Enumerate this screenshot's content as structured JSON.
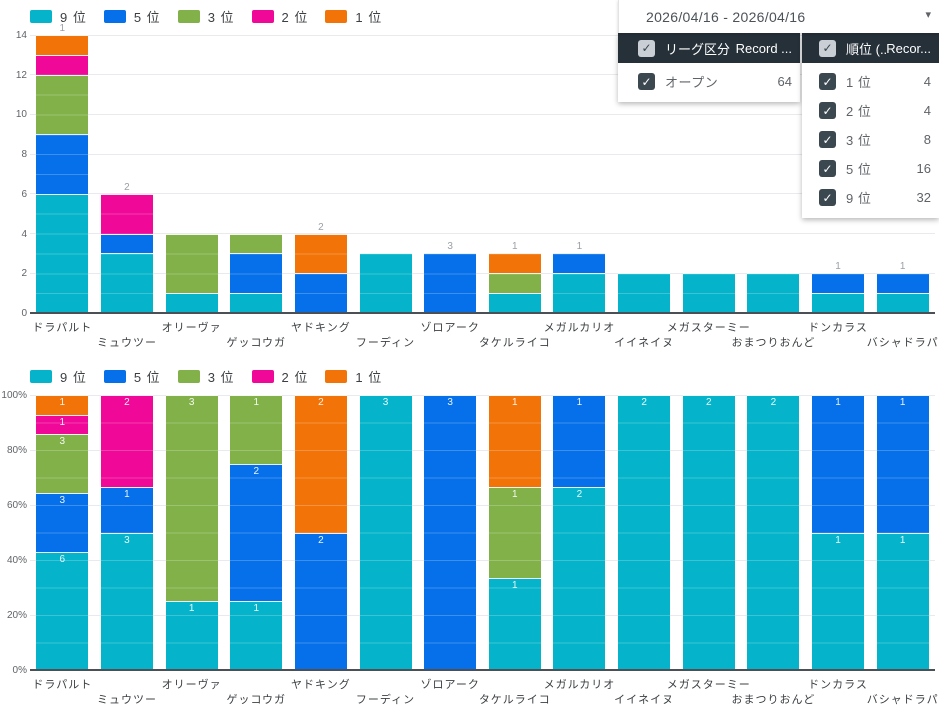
{
  "panel": {
    "date_range": "2026/04/16 - 2026/04/16",
    "caret": "▾",
    "league_filter": {
      "title": "リーグ区分",
      "record_column": "Record ...",
      "rows": [
        {
          "label": "オープン",
          "count": "64",
          "checked": true
        }
      ]
    },
    "rank_filter": {
      "title": "順位 (...",
      "record_column": "Recor...",
      "rows": [
        {
          "label": "1 位",
          "count": "4",
          "checked": true
        },
        {
          "label": "2 位",
          "count": "4",
          "checked": true
        },
        {
          "label": "3 位",
          "count": "8",
          "checked": true
        },
        {
          "label": "5 位",
          "count": "16",
          "checked": true
        },
        {
          "label": "9 位",
          "count": "32",
          "checked": true
        }
      ]
    }
  },
  "chart_data": [
    {
      "type": "bar",
      "stacked": true,
      "mode": "count",
      "legend_position": "top",
      "grid": true,
      "ylim": [
        0,
        14
      ],
      "yticks": [
        0,
        2,
        4,
        6,
        8,
        10,
        12,
        14
      ],
      "categories": [
        "ドラパルト",
        "ミュウツー",
        "オリーヴァ",
        "ゲッコウガ",
        "ヤドキング",
        "フーディン",
        "ゾロアーク",
        "タケルライコ",
        "メガルカリオ",
        "イイネイヌ",
        "メガスターミー",
        "おまつりおんど",
        "ドンカラス",
        "バシャドラパ"
      ],
      "series": [
        {
          "name": "9 位",
          "color": "#05b4cb",
          "values": [
            6,
            3,
            1,
            1,
            0,
            3,
            0,
            1,
            2,
            2,
            2,
            2,
            1,
            1
          ]
        },
        {
          "name": "5 位",
          "color": "#0670ea",
          "values": [
            3,
            1,
            0,
            2,
            2,
            0,
            3,
            0,
            1,
            0,
            0,
            0,
            1,
            1
          ]
        },
        {
          "name": "3 位",
          "color": "#82b14a",
          "values": [
            3,
            0,
            3,
            1,
            0,
            0,
            0,
            1,
            0,
            0,
            0,
            0,
            0,
            0
          ]
        },
        {
          "name": "2 位",
          "color": "#f00898",
          "values": [
            1,
            2,
            0,
            0,
            0,
            0,
            0,
            0,
            0,
            0,
            0,
            0,
            0,
            0
          ]
        },
        {
          "name": "1 位",
          "color": "#f27409",
          "values": [
            1,
            0,
            0,
            0,
            2,
            0,
            0,
            1,
            0,
            0,
            0,
            0,
            0,
            0
          ]
        }
      ],
      "data_labels": "segment-values",
      "hide_top_label_for_series": [
        "9 位",
        "3 位"
      ],
      "top_label_color": "#9aa0a6"
    },
    {
      "type": "bar",
      "stacked": true,
      "mode": "percent",
      "legend_position": "top",
      "grid": true,
      "ylim": [
        0,
        100
      ],
      "yticks": [
        "0%",
        "20%",
        "40%",
        "60%",
        "80%",
        "100%"
      ],
      "categories": [
        "ドラパルト",
        "ミュウツー",
        "オリーヴァ",
        "ゲッコウガ",
        "ヤドキング",
        "フーディン",
        "ゾロアーク",
        "タケルライコ",
        "メガルカリオ",
        "イイネイヌ",
        "メガスターミー",
        "おまつりおんど",
        "ドンカラス",
        "バシャドラパ"
      ],
      "series": [
        {
          "name": "9 位",
          "color": "#05b4cb",
          "values": [
            6,
            3,
            1,
            1,
            0,
            3,
            0,
            1,
            2,
            2,
            2,
            2,
            1,
            1
          ]
        },
        {
          "name": "5 位",
          "color": "#0670ea",
          "values": [
            3,
            1,
            0,
            2,
            2,
            0,
            3,
            0,
            1,
            0,
            0,
            0,
            1,
            1
          ]
        },
        {
          "name": "3 位",
          "color": "#82b14a",
          "values": [
            3,
            0,
            3,
            1,
            0,
            0,
            0,
            1,
            0,
            0,
            0,
            0,
            0,
            0
          ]
        },
        {
          "name": "2 位",
          "color": "#f00898",
          "values": [
            1,
            2,
            0,
            0,
            0,
            0,
            0,
            0,
            0,
            0,
            0,
            0,
            0,
            0
          ]
        },
        {
          "name": "1 位",
          "color": "#f27409",
          "values": [
            1,
            0,
            0,
            0,
            2,
            0,
            0,
            1,
            0,
            0,
            0,
            0,
            0,
            0
          ]
        }
      ],
      "data_labels": "segment-values"
    }
  ]
}
